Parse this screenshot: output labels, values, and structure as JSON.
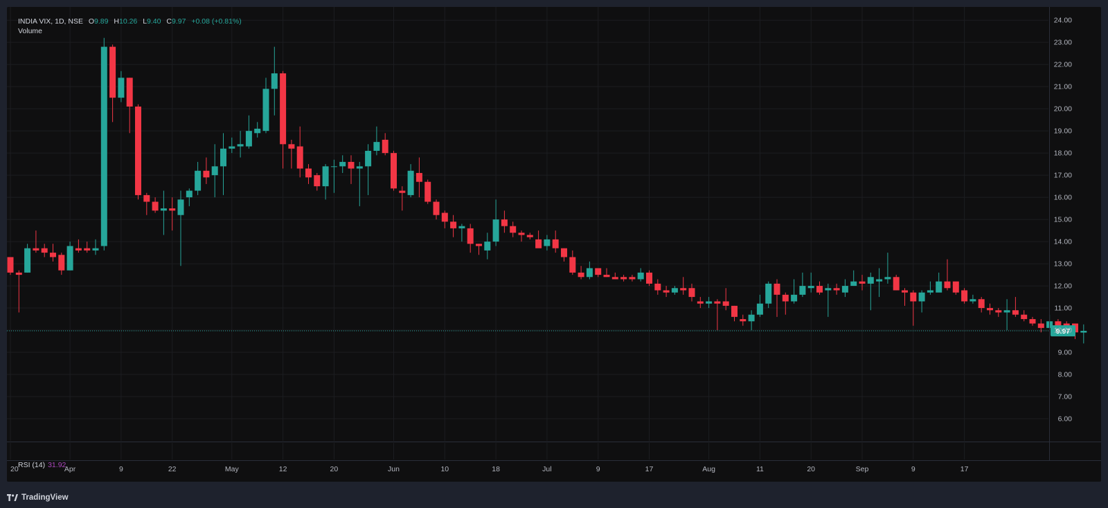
{
  "legend": {
    "symbol": "INDIA VIX, 1D, NSE",
    "open_label": "O",
    "open": "9.89",
    "high_label": "H",
    "high": "10.26",
    "low_label": "L",
    "low": "9.40",
    "close_label": "C",
    "close": "9.97",
    "change": "+0.08 (+0.81%)"
  },
  "volume_label": "Volume",
  "rsi": {
    "label": "RSI (14)",
    "value": "31.92"
  },
  "brand": {
    "name": "TradingView",
    "icon": "tradingview-logo-icon"
  },
  "colors": {
    "up": "#26a69a",
    "down": "#f23645",
    "rsi": "#ab47bc",
    "background": "#0f0f10",
    "last_price": "#26a69a"
  },
  "chart_data": {
    "type": "candlestick",
    "title": "",
    "ylabel": "",
    "xlabel": "",
    "ylim": [
      5.0,
      24.6
    ],
    "y_ticks": [
      "24.00",
      "23.00",
      "22.00",
      "21.00",
      "20.00",
      "19.00",
      "18.00",
      "17.00",
      "16.00",
      "15.00",
      "14.00",
      "13.00",
      "12.00",
      "11.00",
      "10.00",
      "9.00",
      "8.00",
      "7.00",
      "6.00"
    ],
    "x_ticks": [
      "20",
      "Apr",
      "9",
      "22",
      "May",
      "12",
      "20",
      "Jun",
      "10",
      "18",
      "Jul",
      "9",
      "17",
      "Aug",
      "11",
      "20",
      "Sep",
      "9",
      "17"
    ],
    "x_tick_bar_index": [
      0,
      7,
      13,
      19,
      26,
      32,
      38,
      45,
      51,
      57,
      63,
      69,
      75,
      82,
      88,
      94,
      100,
      106,
      112
    ],
    "last_price_label": "9.97",
    "last_price": 9.97,
    "candles": [
      [
        13.3,
        12.6,
        13.3,
        12.5
      ],
      [
        12.6,
        12.5,
        12.7,
        10.8
      ],
      [
        12.6,
        13.7,
        13.9,
        12.6
      ],
      [
        13.7,
        13.6,
        14.5,
        13.5
      ],
      [
        13.7,
        13.5,
        13.9,
        13.3
      ],
      [
        13.5,
        13.3,
        13.9,
        13.1
      ],
      [
        13.4,
        12.7,
        13.5,
        12.5
      ],
      [
        12.7,
        13.8,
        14.0,
        12.7
      ],
      [
        13.7,
        13.6,
        14.1,
        13.5
      ],
      [
        13.7,
        13.6,
        14.0,
        13.5
      ],
      [
        13.6,
        13.7,
        14.1,
        13.4
      ],
      [
        13.8,
        22.8,
        23.2,
        13.6
      ],
      [
        22.8,
        20.5,
        22.9,
        19.4
      ],
      [
        20.5,
        21.4,
        21.7,
        20.3
      ],
      [
        21.4,
        20.1,
        21.4,
        18.9
      ],
      [
        20.1,
        16.1,
        20.2,
        15.9
      ],
      [
        16.1,
        15.8,
        16.2,
        15.2
      ],
      [
        15.8,
        15.4,
        16.0,
        15.3
      ],
      [
        15.4,
        15.5,
        16.3,
        14.3
      ],
      [
        15.5,
        15.4,
        16.0,
        14.5
      ],
      [
        15.2,
        15.9,
        16.3,
        12.9
      ],
      [
        16.0,
        16.3,
        16.4,
        15.6
      ],
      [
        16.3,
        17.2,
        17.6,
        16.1
      ],
      [
        17.2,
        16.9,
        17.8,
        16.6
      ],
      [
        17.0,
        17.4,
        18.4,
        16.0
      ],
      [
        17.4,
        18.2,
        18.9,
        16.1
      ],
      [
        18.2,
        18.3,
        18.7,
        18.0
      ],
      [
        18.3,
        18.4,
        19.0,
        17.8
      ],
      [
        18.3,
        19.0,
        19.7,
        18.2
      ],
      [
        18.9,
        19.1,
        19.4,
        18.7
      ],
      [
        19.0,
        20.9,
        21.4,
        18.9
      ],
      [
        20.9,
        21.6,
        22.8,
        19.7
      ],
      [
        21.6,
        18.4,
        21.7,
        17.3
      ],
      [
        18.4,
        18.2,
        18.6,
        17.3
      ],
      [
        18.3,
        17.3,
        19.2,
        16.9
      ],
      [
        17.3,
        16.9,
        17.5,
        16.6
      ],
      [
        17.0,
        16.5,
        17.1,
        16.3
      ],
      [
        16.5,
        17.4,
        17.5,
        15.9
      ],
      [
        17.4,
        17.4,
        17.7,
        16.2
      ],
      [
        17.4,
        17.6,
        17.9,
        17.1
      ],
      [
        17.6,
        17.3,
        17.9,
        16.6
      ],
      [
        17.3,
        17.4,
        17.6,
        15.6
      ],
      [
        17.4,
        18.1,
        18.4,
        16.1
      ],
      [
        18.1,
        18.5,
        19.2,
        17.9
      ],
      [
        18.6,
        18.0,
        18.9,
        17.9
      ],
      [
        18.0,
        16.4,
        18.1,
        16.3
      ],
      [
        16.3,
        16.2,
        16.5,
        15.4
      ],
      [
        16.1,
        17.2,
        17.5,
        16.0
      ],
      [
        17.1,
        16.7,
        17.8,
        16.0
      ],
      [
        16.7,
        15.8,
        16.8,
        15.7
      ],
      [
        15.8,
        15.2,
        15.9,
        15.0
      ],
      [
        15.3,
        14.9,
        15.4,
        14.6
      ],
      [
        14.9,
        14.6,
        15.2,
        14.2
      ],
      [
        14.6,
        14.7,
        14.8,
        14.0
      ],
      [
        14.6,
        13.9,
        14.8,
        13.5
      ],
      [
        13.9,
        13.8,
        13.9,
        13.4
      ],
      [
        13.6,
        14.0,
        14.4,
        13.2
      ],
      [
        14.0,
        15.0,
        15.9,
        13.8
      ],
      [
        15.0,
        14.7,
        15.4,
        14.4
      ],
      [
        14.7,
        14.4,
        14.9,
        14.2
      ],
      [
        14.4,
        14.3,
        14.5,
        14.0
      ],
      [
        14.3,
        14.2,
        14.4,
        14.1
      ],
      [
        14.1,
        13.7,
        14.5,
        13.8
      ],
      [
        13.8,
        14.1,
        14.3,
        13.6
      ],
      [
        14.1,
        13.7,
        14.5,
        13.5
      ],
      [
        13.7,
        13.3,
        13.7,
        13.1
      ],
      [
        13.3,
        12.6,
        13.6,
        12.5
      ],
      [
        12.6,
        12.4,
        12.9,
        12.3
      ],
      [
        12.4,
        12.8,
        13.1,
        12.3
      ],
      [
        12.8,
        12.5,
        12.8,
        12.4
      ],
      [
        12.5,
        12.4,
        12.8,
        12.4
      ],
      [
        12.4,
        12.3,
        12.6,
        12.3
      ],
      [
        12.4,
        12.3,
        12.5,
        12.2
      ],
      [
        12.4,
        12.3,
        12.5,
        12.2
      ],
      [
        12.3,
        12.6,
        12.8,
        12.2
      ],
      [
        12.6,
        12.1,
        12.7,
        12.0
      ],
      [
        12.1,
        11.8,
        12.3,
        11.6
      ],
      [
        11.8,
        11.7,
        12.0,
        11.5
      ],
      [
        11.7,
        11.9,
        12.0,
        11.6
      ],
      [
        11.9,
        11.8,
        12.4,
        11.6
      ],
      [
        11.9,
        11.5,
        12.1,
        11.3
      ],
      [
        11.3,
        11.2,
        11.5,
        11.0
      ],
      [
        11.2,
        11.3,
        11.5,
        11.0
      ],
      [
        11.3,
        11.2,
        11.4,
        10.0
      ],
      [
        11.3,
        11.1,
        11.9,
        10.9
      ],
      [
        11.1,
        10.6,
        11.1,
        10.4
      ],
      [
        10.5,
        10.4,
        10.7,
        10.2
      ],
      [
        10.4,
        10.7,
        10.9,
        10.0
      ],
      [
        10.7,
        11.2,
        11.6,
        10.6
      ],
      [
        11.2,
        12.1,
        12.2,
        11.0
      ],
      [
        12.1,
        11.6,
        12.3,
        10.6
      ],
      [
        11.6,
        11.3,
        11.7,
        10.7
      ],
      [
        11.3,
        11.6,
        12.3,
        11.2
      ],
      [
        11.6,
        12.0,
        12.6,
        11.5
      ],
      [
        11.9,
        12.0,
        12.6,
        11.7
      ],
      [
        12.0,
        11.7,
        12.2,
        11.6
      ],
      [
        11.8,
        11.9,
        12.1,
        10.6
      ],
      [
        11.9,
        11.8,
        12.1,
        11.6
      ],
      [
        11.7,
        12.0,
        12.3,
        11.5
      ],
      [
        12.0,
        12.2,
        12.7,
        12.0
      ],
      [
        12.2,
        12.1,
        12.5,
        11.8
      ],
      [
        12.1,
        12.4,
        12.6,
        10.9
      ],
      [
        12.2,
        12.3,
        12.8,
        11.5
      ],
      [
        12.3,
        12.4,
        13.5,
        12.1
      ],
      [
        12.4,
        11.8,
        12.5,
        11.8
      ],
      [
        11.8,
        11.7,
        11.9,
        11.1
      ],
      [
        11.7,
        11.3,
        11.8,
        10.2
      ],
      [
        11.3,
        11.7,
        11.8,
        10.8
      ],
      [
        11.7,
        11.8,
        12.2,
        11.6
      ],
      [
        11.7,
        12.2,
        12.6,
        11.8
      ],
      [
        12.2,
        11.9,
        13.2,
        11.8
      ],
      [
        12.2,
        11.7,
        12.1,
        11.6
      ],
      [
        11.8,
        11.3,
        11.9,
        11.2
      ],
      [
        11.3,
        11.4,
        11.6,
        11.2
      ],
      [
        11.4,
        11.0,
        11.5,
        10.8
      ],
      [
        11.0,
        10.9,
        11.2,
        10.7
      ],
      [
        10.9,
        10.8,
        11.0,
        10.6
      ],
      [
        10.8,
        10.9,
        11.4,
        10.0
      ],
      [
        10.9,
        10.7,
        11.5,
        10.6
      ],
      [
        10.7,
        10.5,
        10.9,
        10.4
      ],
      [
        10.5,
        10.3,
        10.6,
        10.2
      ],
      [
        10.3,
        10.1,
        10.5,
        9.9
      ],
      [
        10.1,
        10.4,
        10.7,
        10.0
      ],
      [
        10.4,
        10.2,
        10.5,
        9.9
      ],
      [
        10.3,
        10.2,
        10.4,
        9.8
      ],
      [
        10.3,
        9.9,
        10.3,
        9.6
      ],
      [
        9.89,
        9.97,
        10.26,
        9.4
      ]
    ]
  }
}
